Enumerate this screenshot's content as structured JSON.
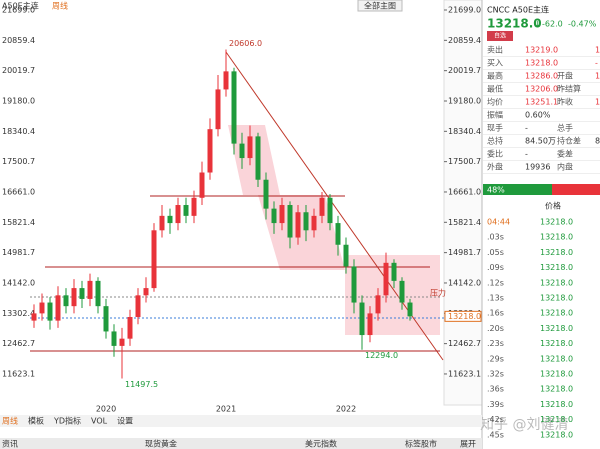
{
  "header": {
    "symbol": "A50E主连",
    "period": "周线",
    "main_chart_button": "全部主图"
  },
  "chart_data": {
    "type": "candlestick",
    "categories": [
      null,
      null,
      null,
      null,
      null,
      null,
      null,
      null,
      null,
      "2020",
      null,
      null,
      null,
      null,
      null,
      null,
      null,
      null,
      null,
      null,
      null,
      null,
      null,
      null,
      "2021",
      null,
      null,
      null,
      null,
      null,
      null,
      null,
      null,
      null,
      null,
      null,
      null,
      null,
      null,
      "2022",
      null,
      null,
      null,
      null,
      null,
      null,
      null,
      null
    ],
    "open": [
      13100,
      13300,
      13600,
      13100,
      13800,
      13500,
      14000,
      13700,
      14200,
      13500,
      12800,
      12400,
      12600,
      13200,
      13800,
      14000,
      15600,
      16000,
      15800,
      16300,
      16000,
      16500,
      17200,
      18400,
      19500,
      20000,
      18000,
      17600,
      18200,
      17000,
      16200,
      15800,
      16300,
      15400,
      16100,
      15600,
      16000,
      16500,
      15800,
      15200,
      14600,
      13600,
      12700,
      13300,
      13800,
      14700,
      14200,
      13600
    ],
    "high": [
      13550,
      13850,
      13750,
      14050,
      14000,
      14250,
      14200,
      14400,
      14300,
      13700,
      13000,
      12900,
      13400,
      14000,
      14300,
      15800,
      16300,
      16200,
      16500,
      16500,
      16700,
      17500,
      18700,
      19900,
      20606,
      20100,
      18300,
      18500,
      18300,
      17200,
      16400,
      16500,
      16400,
      16300,
      16300,
      16200,
      16661,
      16600,
      16000,
      15400,
      14800,
      13800,
      13500,
      14000,
      14981,
      14800,
      14300,
      13700
    ],
    "low": [
      12900,
      13100,
      12850,
      12900,
      13300,
      13300,
      13450,
      13500,
      13300,
      12600,
      12100,
      11497.5,
      12400,
      13000,
      13600,
      13900,
      15400,
      15500,
      15600,
      15800,
      15800,
      16300,
      17000,
      18200,
      19300,
      17700,
      17300,
      17400,
      16800,
      15900,
      15500,
      15600,
      15100,
      15200,
      15300,
      15400,
      15800,
      15600,
      14900,
      14400,
      13300,
      12294,
      12500,
      13100,
      13600,
      14000,
      13400,
      13100
    ],
    "close": [
      13300,
      13600,
      13100,
      13800,
      13500,
      14000,
      13700,
      14200,
      13500,
      12800,
      12400,
      12600,
      13200,
      13800,
      14000,
      15600,
      16000,
      15800,
      16300,
      16000,
      16500,
      17200,
      18400,
      19500,
      20000,
      18000,
      17600,
      18200,
      17000,
      16200,
      15800,
      16300,
      15400,
      16100,
      15600,
      16000,
      16500,
      15800,
      15200,
      14600,
      13600,
      12700,
      13300,
      13800,
      14700,
      14200,
      13600,
      13218
    ],
    "up_color": "#e8333a",
    "down_color": "#1f9a3c",
    "ylim": [
      10902,
      21699
    ],
    "yticks": [
      {
        "value": 21699,
        "label": "21699.0"
      },
      20859.4,
      20019.7,
      {
        "value": 19180,
        "label": "19180.0"
      },
      18340.4,
      17500.7,
      {
        "value": 16661,
        "label": "16661.0"
      },
      15821.4,
      14981.7,
      {
        "value": 14142,
        "label": "14142.0"
      },
      13302.4,
      12462.7,
      11623.1
    ],
    "annotations": [
      {
        "value": 20606,
        "label": "20606.0",
        "at": "high"
      },
      {
        "value": 11497.5,
        "label": "11497.5",
        "at": "low"
      },
      {
        "value": 12294,
        "label": "12294.0",
        "at": "low"
      }
    ],
    "last_price_label": "13218.0",
    "resistance_label": "压力"
  },
  "tabs": [
    "周线",
    "模板",
    "YD指标",
    "VOL",
    "设置"
  ],
  "status": [
    "资讯",
    "现货黄金",
    "美元指数",
    "标签股市",
    "展开"
  ],
  "watermark": "知乎 @刘健清",
  "quote": {
    "title": "CNCC A50E主连",
    "price": "13218.0",
    "arrow": "↓",
    "change": "-62.0",
    "change_pct": "-0.47%",
    "fav": "自选",
    "rows": [
      [
        "卖出",
        "13219.0",
        "",
        "1"
      ],
      [
        "买入",
        "13218.0",
        "",
        "-"
      ],
      [
        "最高",
        "13286.0",
        "开盘",
        "1"
      ],
      [
        "最低",
        "13206.0",
        "昨结算",
        ""
      ],
      [
        "均价",
        "13251.1",
        "昨收",
        "1"
      ],
      [
        "振幅",
        "0.60%",
        "",
        ""
      ],
      [
        "现手",
        "-",
        "总手",
        ""
      ],
      [
        "总持",
        "84.50万",
        "持仓差",
        "8"
      ],
      [
        "委比",
        "-",
        "委差",
        ""
      ],
      [
        "外盘",
        "19936",
        "内盘",
        ""
      ]
    ],
    "ratio": "48%",
    "list_header": "价格",
    "ticks": [
      [
        "04:44",
        "13218.0"
      ],
      [
        ".03s",
        "13218.0"
      ],
      [
        ".05s",
        "13218.0"
      ],
      [
        ".09s",
        "13218.0"
      ],
      [
        ".12s",
        "13218.0"
      ],
      [
        ".13s",
        "13218.0"
      ],
      [
        ".16s",
        "13218.0"
      ],
      [
        ".20s",
        "13218.0"
      ],
      [
        ".23s",
        "13218.0"
      ],
      [
        ".29s",
        "13218.0"
      ],
      [
        ".32s",
        "13218.0"
      ],
      [
        ".36s",
        "13218.0"
      ],
      [
        ".39s",
        "13218.0"
      ],
      [
        ".42s",
        "13218.0"
      ],
      [
        ".45s",
        "13218.0"
      ]
    ]
  }
}
